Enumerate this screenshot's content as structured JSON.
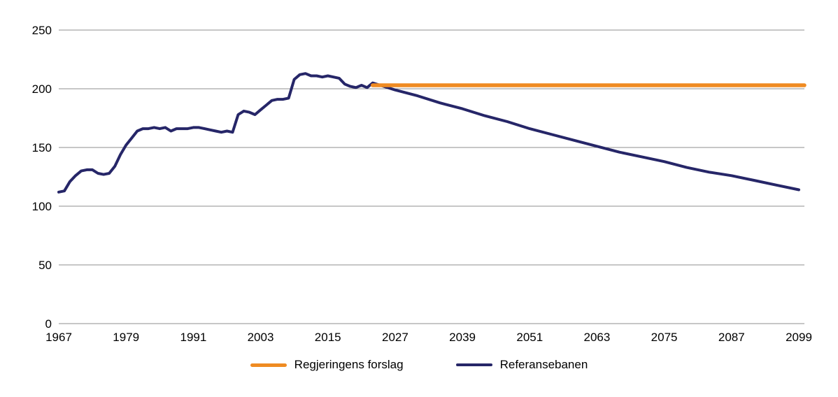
{
  "chart_data": {
    "type": "line",
    "title": "",
    "xlabel": "",
    "ylabel": "",
    "xlim": [
      1967,
      2100
    ],
    "ylim": [
      0,
      250
    ],
    "xticks": [
      1967,
      1979,
      1991,
      2003,
      2015,
      2027,
      2039,
      2051,
      2063,
      2075,
      2087,
      2099
    ],
    "yticks": [
      0,
      50,
      100,
      150,
      200,
      250
    ],
    "grid": "horizontal",
    "legend_position": "bottom-center",
    "colors": {
      "gridline": "#8f8f8f",
      "text": "#000000",
      "orange": "#EF8B22",
      "navy": "#262668"
    },
    "series": [
      {
        "name": "Referansebanen",
        "color": "#262668",
        "width": 4,
        "points": [
          [
            1967,
            112
          ],
          [
            1968,
            113
          ],
          [
            1969,
            121
          ],
          [
            1970,
            126
          ],
          [
            1971,
            130
          ],
          [
            1972,
            131
          ],
          [
            1973,
            131
          ],
          [
            1974,
            128
          ],
          [
            1975,
            127
          ],
          [
            1976,
            128
          ],
          [
            1977,
            134
          ],
          [
            1978,
            144
          ],
          [
            1979,
            152
          ],
          [
            1980,
            158
          ],
          [
            1981,
            164
          ],
          [
            1982,
            166
          ],
          [
            1983,
            166
          ],
          [
            1984,
            167
          ],
          [
            1985,
            166
          ],
          [
            1986,
            167
          ],
          [
            1987,
            164
          ],
          [
            1988,
            166
          ],
          [
            1989,
            166
          ],
          [
            1990,
            166
          ],
          [
            1991,
            167
          ],
          [
            1992,
            167
          ],
          [
            1993,
            166
          ],
          [
            1994,
            165
          ],
          [
            1995,
            164
          ],
          [
            1996,
            163
          ],
          [
            1997,
            164
          ],
          [
            1998,
            163
          ],
          [
            1999,
            178
          ],
          [
            2000,
            181
          ],
          [
            2001,
            180
          ],
          [
            2002,
            178
          ],
          [
            2003,
            182
          ],
          [
            2004,
            186
          ],
          [
            2005,
            190
          ],
          [
            2006,
            191
          ],
          [
            2007,
            191
          ],
          [
            2008,
            192
          ],
          [
            2009,
            208
          ],
          [
            2010,
            212
          ],
          [
            2011,
            213
          ],
          [
            2012,
            211
          ],
          [
            2013,
            211
          ],
          [
            2014,
            210
          ],
          [
            2015,
            211
          ],
          [
            2016,
            210
          ],
          [
            2017,
            209
          ],
          [
            2018,
            204
          ],
          [
            2019,
            202
          ],
          [
            2020,
            201
          ],
          [
            2021,
            203
          ],
          [
            2022,
            201
          ],
          [
            2023,
            205
          ],
          [
            2027,
            199
          ],
          [
            2031,
            194
          ],
          [
            2035,
            188
          ],
          [
            2039,
            183
          ],
          [
            2043,
            177
          ],
          [
            2047,
            172
          ],
          [
            2051,
            166
          ],
          [
            2055,
            161
          ],
          [
            2059,
            156
          ],
          [
            2063,
            151
          ],
          [
            2067,
            146
          ],
          [
            2071,
            142
          ],
          [
            2075,
            138
          ],
          [
            2079,
            133
          ],
          [
            2083,
            129
          ],
          [
            2087,
            126
          ],
          [
            2091,
            122
          ],
          [
            2095,
            118
          ],
          [
            2099,
            114
          ]
        ]
      },
      {
        "name": "Regjeringens forslag",
        "color": "#EF8B22",
        "width": 5.5,
        "points": [
          [
            2023,
            203
          ],
          [
            2100,
            203
          ]
        ]
      }
    ],
    "legend": [
      {
        "label": "Regjeringens forslag",
        "color": "#EF8B22"
      },
      {
        "label": "Referansebanen",
        "color": "#262668"
      }
    ]
  }
}
